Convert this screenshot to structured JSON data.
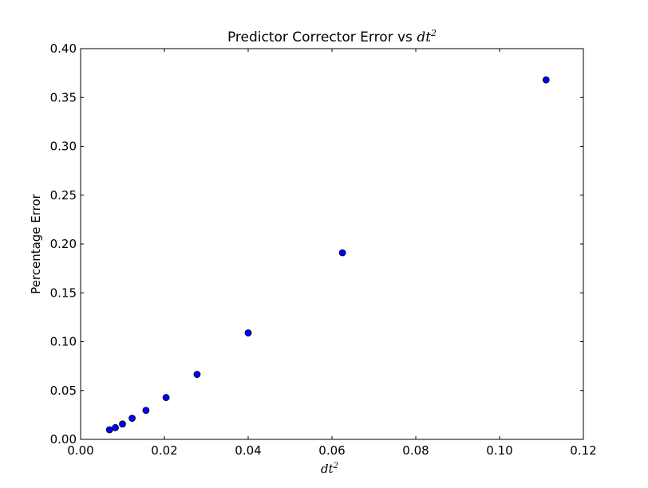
{
  "chart_data": {
    "type": "scatter",
    "title_prefix": "Predictor Corrector Error vs ",
    "title_math_base": "dt",
    "title_math_exp": "2",
    "xlabel_base": "dt",
    "xlabel_exp": "2",
    "ylabel": "Percentage Error",
    "xlim": [
      0.0,
      0.12
    ],
    "ylim": [
      0.0,
      0.4
    ],
    "x_ticks": [
      {
        "value": 0.0,
        "label": "0.00"
      },
      {
        "value": 0.02,
        "label": "0.02"
      },
      {
        "value": 0.04,
        "label": "0.04"
      },
      {
        "value": 0.06,
        "label": "0.06"
      },
      {
        "value": 0.08,
        "label": "0.08"
      },
      {
        "value": 0.1,
        "label": "0.10"
      },
      {
        "value": 0.12,
        "label": "0.12"
      }
    ],
    "y_ticks": [
      {
        "value": 0.0,
        "label": "0.00"
      },
      {
        "value": 0.05,
        "label": "0.05"
      },
      {
        "value": 0.1,
        "label": "0.10"
      },
      {
        "value": 0.15,
        "label": "0.15"
      },
      {
        "value": 0.2,
        "label": "0.20"
      },
      {
        "value": 0.25,
        "label": "0.25"
      },
      {
        "value": 0.3,
        "label": "0.30"
      },
      {
        "value": 0.35,
        "label": "0.35"
      },
      {
        "value": 0.4,
        "label": "0.40"
      }
    ],
    "grid": false,
    "marker_color": "#0000ff",
    "marker_edge_color": "#000000",
    "points": [
      {
        "x": 0.0069,
        "y": 0.0098
      },
      {
        "x": 0.0083,
        "y": 0.012
      },
      {
        "x": 0.01,
        "y": 0.0157
      },
      {
        "x": 0.0123,
        "y": 0.0216
      },
      {
        "x": 0.0156,
        "y": 0.0297
      },
      {
        "x": 0.0204,
        "y": 0.0428
      },
      {
        "x": 0.0278,
        "y": 0.0665
      },
      {
        "x": 0.04,
        "y": 0.109
      },
      {
        "x": 0.0625,
        "y": 0.191
      },
      {
        "x": 0.1111,
        "y": 0.368
      }
    ]
  }
}
